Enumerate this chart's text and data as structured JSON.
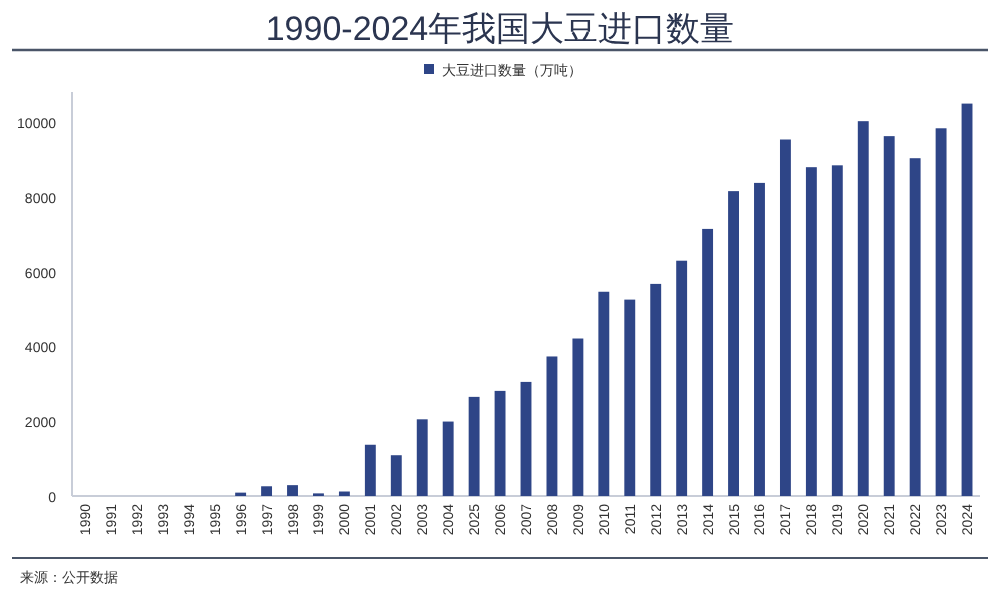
{
  "chart_data": {
    "type": "bar",
    "title": "1990-2024年我国大豆进口数量",
    "categories": [
      "1990",
      "1991",
      "1992",
      "1993",
      "1994",
      "1995",
      "1996",
      "1997",
      "1998",
      "1999",
      "2000",
      "2001",
      "2002",
      "2003",
      "2004",
      "2025",
      "2006",
      "2007",
      "2008",
      "2009",
      "2010",
      "2011",
      "2012",
      "2013",
      "2014",
      "2015",
      "2016",
      "2017",
      "2018",
      "2019",
      "2020",
      "2021",
      "2022",
      "2023",
      "2024"
    ],
    "series": [
      {
        "name": "大豆进口数量（万吨）",
        "color": "#2e4587",
        "values": [
          0,
          0,
          0,
          0,
          0,
          0,
          90,
          260,
          290,
          70,
          120,
          1370,
          1090,
          2050,
          1990,
          2650,
          2810,
          3050,
          3730,
          4210,
          5460,
          5250,
          5670,
          6290,
          7140,
          8150,
          8370,
          9530,
          8790,
          8840,
          10020,
          9620,
          9030,
          9830,
          10490
        ]
      }
    ],
    "ylim": [
      0,
      10800
    ],
    "yticks": [
      0,
      2000,
      4000,
      6000,
      8000,
      10000
    ],
    "legend": "top",
    "grid": false,
    "annotations": [
      "来源：公开数据"
    ]
  }
}
